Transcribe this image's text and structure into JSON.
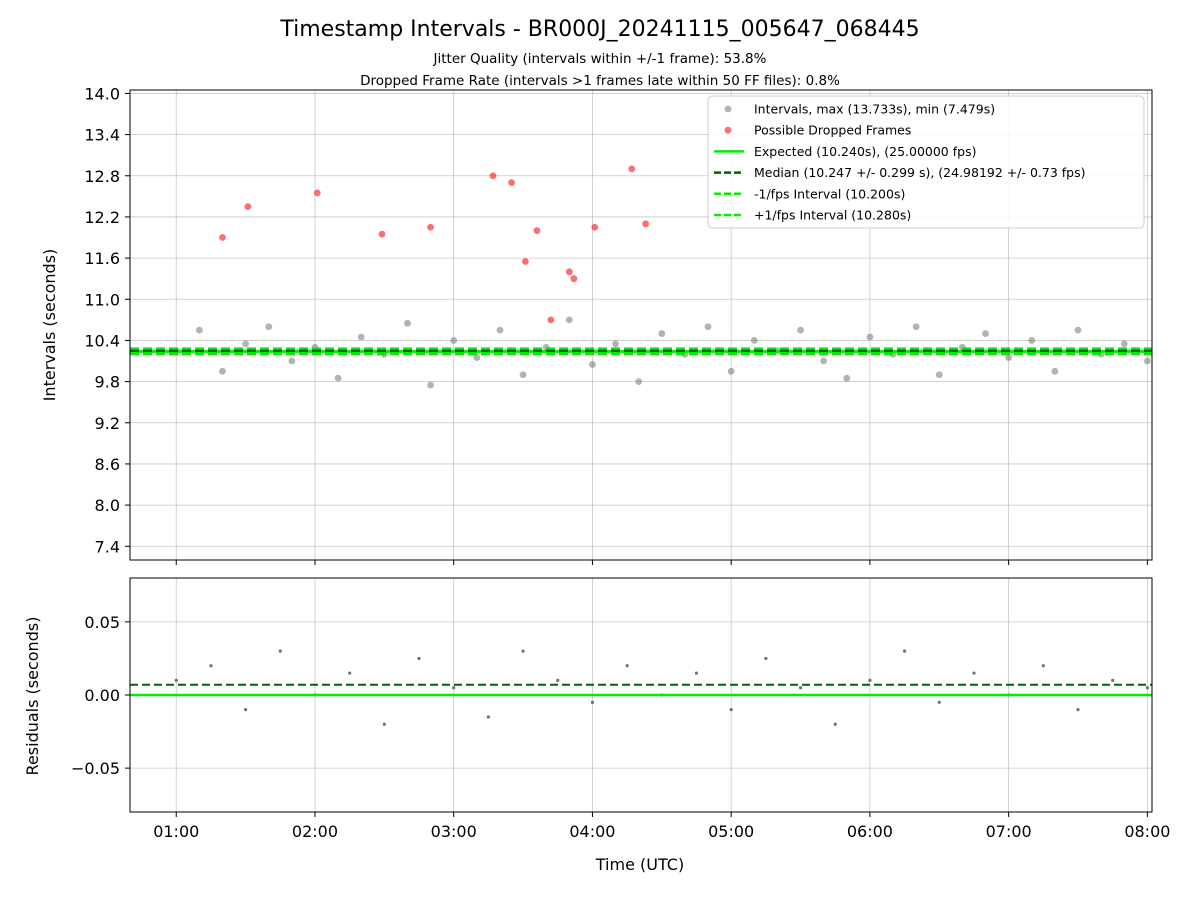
{
  "colors": {
    "interval": "#808080",
    "dropped": "#ff2020",
    "expected": "#00ee00",
    "median": "#006400",
    "fps_bound": "#00ee00",
    "grid": "#b0b0b0",
    "residual": "#707070"
  },
  "chart_data": [
    {
      "type": "scatter",
      "title": "Timestamp Intervals - BR000J_20241115_005647_068445",
      "subtitle_lines": [
        "Jitter Quality (intervals within +/-1 frame): 53.8%",
        "Dropped Frame Rate (intervals >1 frames late within 50 FF files): 0.8%"
      ],
      "xlabel": "",
      "ylabel": "Intervals (seconds)",
      "xlim": [
        "00:40",
        "08:02"
      ],
      "ylim": [
        7.2,
        14.05
      ],
      "grid": true,
      "legend_position": "top-right",
      "yticks": [
        "7.4",
        "8.0",
        "8.6",
        "9.2",
        "9.8",
        "10.4",
        "11.0",
        "11.6",
        "12.2",
        "12.8",
        "13.4",
        "14.0"
      ],
      "legend": [
        "Intervals, max (13.733s), min (7.479s)",
        "Possible Dropped Frames",
        "Expected (10.240s), (25.00000 fps)",
        "Median (10.247 +/- 0.299 s), (24.98192 +/- 0.73 fps)",
        "-1/fps Interval (10.200s)",
        "+1/fps Interval (10.280s)"
      ],
      "series": [
        {
          "name": "Intervals, max (13.733s), min (7.479s)",
          "x": [
            "01:00",
            "01:10",
            "01:20",
            "01:30",
            "01:40",
            "01:50",
            "02:00",
            "02:10",
            "02:20",
            "02:30",
            "02:40",
            "02:50",
            "03:00",
            "03:10",
            "03:20",
            "03:30",
            "03:40",
            "03:50",
            "04:00",
            "04:10",
            "04:20",
            "04:30",
            "04:40",
            "04:50",
            "05:00",
            "05:10",
            "05:20",
            "05:30",
            "05:40",
            "05:50",
            "06:00",
            "06:10",
            "06:20",
            "06:30",
            "06:40",
            "06:50",
            "07:00",
            "07:10",
            "07:20",
            "07:30",
            "07:40",
            "07:50",
            "08:00"
          ],
          "y": [
            10.25,
            10.55,
            9.95,
            10.35,
            10.6,
            10.1,
            10.3,
            9.85,
            10.45,
            10.2,
            10.65,
            9.75,
            10.4,
            10.15,
            10.55,
            9.9,
            10.3,
            10.7,
            10.05,
            10.35,
            9.8,
            10.5,
            10.2,
            10.6,
            9.95,
            10.4,
            10.25,
            10.55,
            10.1,
            9.85,
            10.45,
            10.2,
            10.6,
            9.9,
            10.3,
            10.5,
            10.15,
            10.4,
            9.95,
            10.55,
            10.2,
            10.35,
            10.1
          ]
        },
        {
          "name": "Possible Dropped Frames",
          "x": [
            "01:20",
            "01:31",
            "02:01",
            "02:29",
            "02:50",
            "03:17",
            "03:25",
            "03:36",
            "03:50",
            "03:52",
            "04:01",
            "04:17",
            "04:23",
            "03:31",
            "03:42"
          ],
          "y": [
            11.9,
            12.35,
            12.55,
            11.95,
            12.05,
            12.8,
            12.7,
            12.0,
            11.4,
            11.3,
            12.05,
            12.9,
            12.1,
            11.55,
            10.7
          ]
        },
        {
          "name": "Expected (10.240s), (25.00000 fps)",
          "y": 10.24
        },
        {
          "name": "Median (10.247 +/- 0.299 s), (24.98192 +/- 0.73 fps)",
          "y": 10.247
        },
        {
          "name": "-1/fps Interval (10.200s)",
          "y": 10.2
        },
        {
          "name": "+1/fps Interval (10.280s)",
          "y": 10.28
        }
      ]
    },
    {
      "type": "scatter",
      "title": "",
      "xlabel": "Time (UTC)",
      "ylabel": "Residuals (seconds)",
      "xlim": [
        "00:40",
        "08:02"
      ],
      "ylim": [
        -0.08,
        0.08
      ],
      "grid": true,
      "yticks": [
        "0.05",
        "0.00",
        "−0.05"
      ],
      "xticks": [
        "01:00",
        "02:00",
        "03:00",
        "04:00",
        "05:00",
        "06:00",
        "07:00",
        "08:00"
      ],
      "series": [
        {
          "name": "",
          "x": [
            "01:00",
            "01:15",
            "01:30",
            "01:45",
            "02:00",
            "02:15",
            "02:30",
            "02:45",
            "03:00",
            "03:15",
            "03:30",
            "03:45",
            "04:00",
            "04:15",
            "04:30",
            "04:45",
            "05:00",
            "05:15",
            "05:30",
            "05:45",
            "06:00",
            "06:15",
            "06:30",
            "06:45",
            "07:00",
            "07:15",
            "07:30",
            "07:45",
            "08:00"
          ],
          "y": [
            0.01,
            0.02,
            -0.01,
            0.03,
            0.0,
            0.015,
            -0.02,
            0.025,
            0.005,
            -0.015,
            0.03,
            0.01,
            -0.005,
            0.02,
            0.0,
            0.015,
            -0.01,
            0.025,
            0.005,
            -0.02,
            0.01,
            0.03,
            -0.005,
            0.015,
            0.0,
            0.02,
            -0.01,
            0.01,
            0.005
          ]
        },
        {
          "name": "",
          "y": 0.007
        },
        {
          "name": "",
          "y": 0.0
        }
      ]
    }
  ]
}
